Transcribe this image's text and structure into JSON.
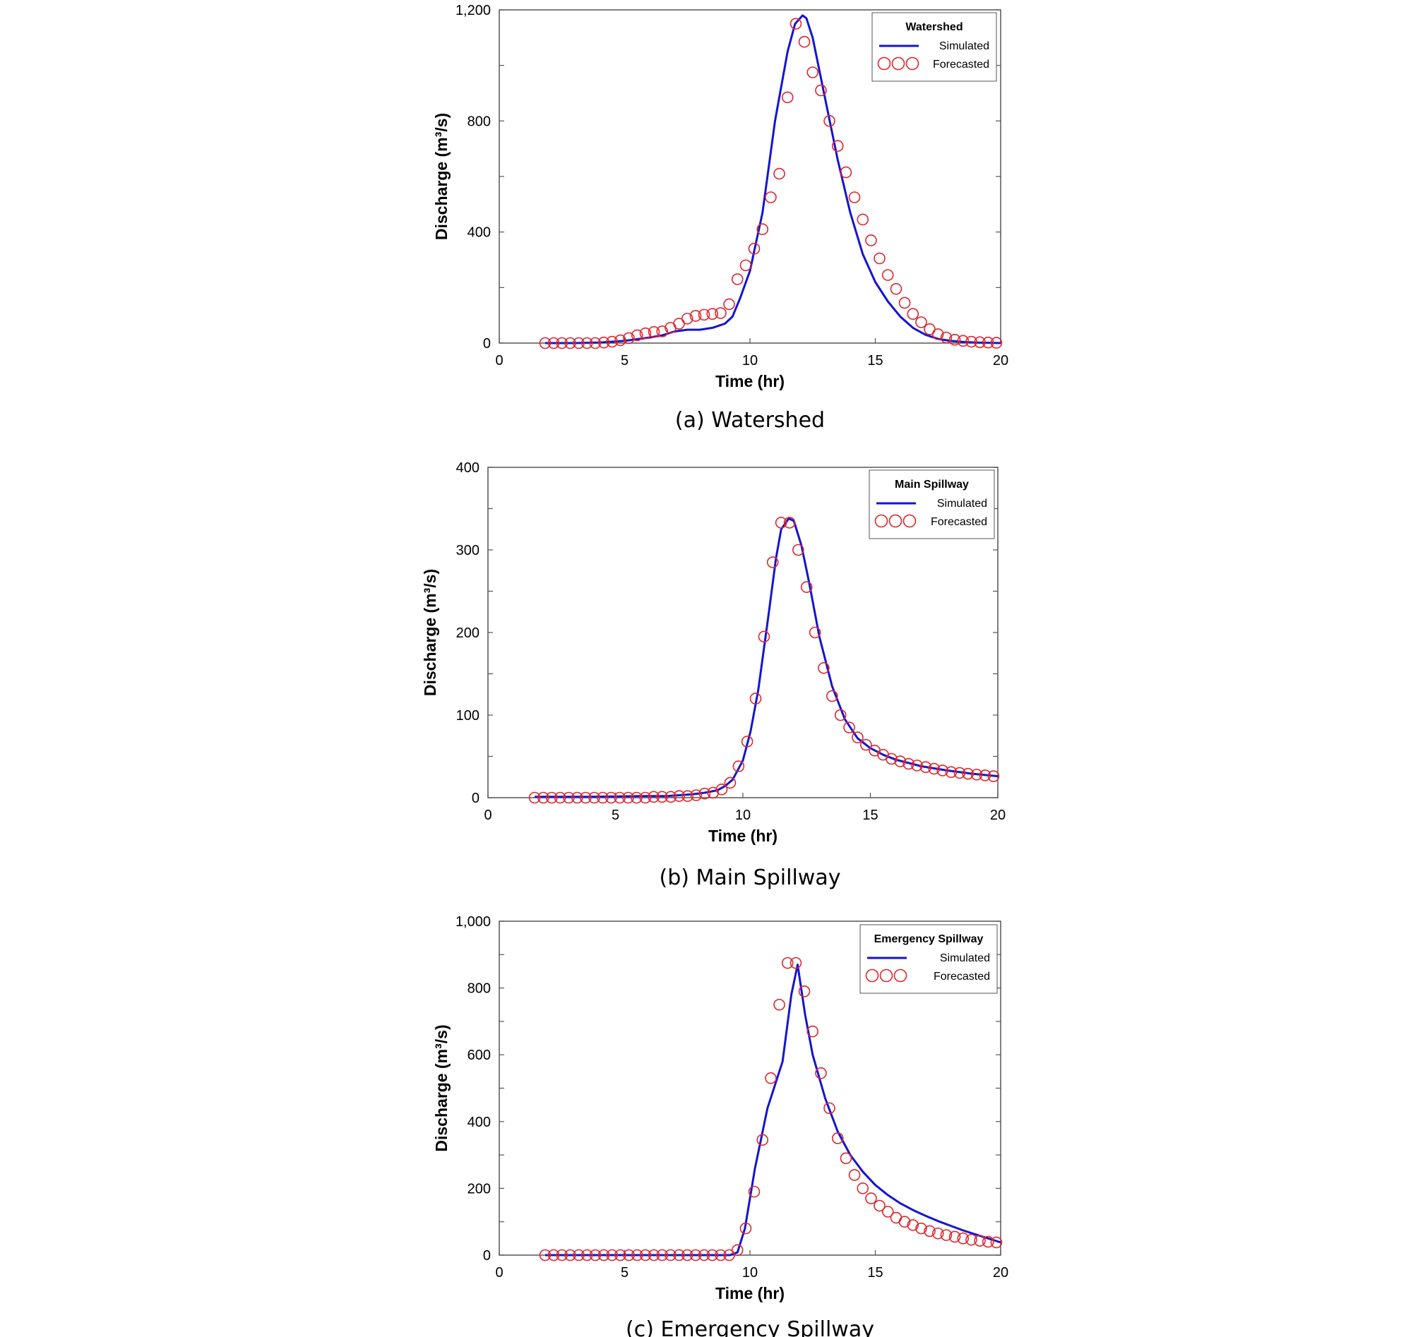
{
  "colors": {
    "simulated": "#1414d2",
    "forecasted": "#e0262b",
    "axis": "#555555"
  },
  "chart_data": [
    {
      "type": "line",
      "caption": "(a) Watershed",
      "legend_title": "Watershed",
      "legend_position": "top-right",
      "xlabel": "Time (hr)",
      "ylabel": "Discharge (m³/s)",
      "xlim": [
        0,
        20
      ],
      "ylim": [
        0,
        1200
      ],
      "xticks": [
        0,
        5,
        10,
        15,
        20
      ],
      "xtick_labels": [
        "0",
        "5",
        "10",
        "15",
        "20"
      ],
      "yticks": [
        0,
        400,
        800,
        1200
      ],
      "ytick_labels": [
        "0",
        "400",
        "800",
        "1,200"
      ],
      "y_minor_step": 200,
      "series": [
        {
          "name": "Simulated",
          "style": "line",
          "x": [
            1.83,
            3,
            4,
            5,
            6,
            6.5,
            7,
            7.5,
            8,
            8.5,
            9,
            9.3,
            9.6,
            10,
            10.5,
            11,
            11.5,
            11.8,
            12.1,
            12.25,
            12.5,
            13,
            13.5,
            14,
            14.5,
            15,
            15.5,
            16,
            16.5,
            17,
            17.5,
            18,
            18.5,
            19,
            20
          ],
          "values": [
            0,
            0,
            2,
            8,
            20,
            28,
            42,
            48,
            48,
            55,
            70,
            95,
            160,
            260,
            470,
            800,
            1050,
            1150,
            1180,
            1170,
            1100,
            880,
            660,
            470,
            320,
            220,
            150,
            95,
            55,
            30,
            15,
            8,
            4,
            2,
            0
          ]
        },
        {
          "name": "Forecasted",
          "style": "markers",
          "x": [
            1.83,
            2.17,
            2.5,
            2.83,
            3.17,
            3.5,
            3.83,
            4.17,
            4.5,
            4.83,
            5.17,
            5.5,
            5.83,
            6.17,
            6.5,
            6.83,
            7.17,
            7.5,
            7.83,
            8.17,
            8.5,
            8.83,
            9.17,
            9.5,
            9.83,
            10.17,
            10.5,
            10.83,
            11.17,
            11.5,
            11.83,
            12.17,
            12.5,
            12.83,
            13.17,
            13.5,
            13.83,
            14.17,
            14.5,
            14.83,
            15.17,
            15.5,
            15.83,
            16.17,
            16.5,
            16.83,
            17.17,
            17.5,
            17.83,
            18.17,
            18.5,
            18.83,
            19.17,
            19.5,
            19.83
          ],
          "values": [
            0,
            0,
            0,
            0,
            0,
            0,
            0,
            2,
            5,
            10,
            18,
            28,
            35,
            40,
            42,
            55,
            70,
            88,
            98,
            102,
            105,
            108,
            140,
            230,
            280,
            340,
            410,
            525,
            610,
            885,
            1150,
            1085,
            975,
            910,
            800,
            710,
            615,
            525,
            445,
            370,
            305,
            245,
            195,
            145,
            105,
            75,
            50,
            32,
            20,
            12,
            8,
            5,
            3,
            2,
            1
          ]
        }
      ]
    },
    {
      "type": "line",
      "caption": "(b) Main Spillway",
      "legend_title": "Main Spillway",
      "legend_position": "top-right",
      "xlabel": "Time (hr)",
      "ylabel": "Discharge (m³/s)",
      "xlim": [
        0,
        20
      ],
      "ylim": [
        0,
        400
      ],
      "xticks": [
        0,
        5,
        10,
        15,
        20
      ],
      "xtick_labels": [
        "0",
        "5",
        "10",
        "15",
        "20"
      ],
      "yticks": [
        0,
        100,
        200,
        300,
        400
      ],
      "ytick_labels": [
        "0",
        "100",
        "200",
        "300",
        "400"
      ],
      "y_minor_step": 50,
      "series": [
        {
          "name": "Simulated",
          "style": "line",
          "x": [
            1.83,
            4,
            6,
            7,
            8,
            8.5,
            9,
            9.3,
            9.6,
            10,
            10.3,
            10.6,
            11,
            11.3,
            11.5,
            11.8,
            12,
            12.3,
            12.6,
            13,
            13.5,
            14,
            14.5,
            15,
            15.5,
            16,
            17,
            18,
            19,
            20
          ],
          "values": [
            1,
            1,
            2,
            2,
            4,
            6,
            9,
            14,
            22,
            45,
            80,
            130,
            220,
            290,
            325,
            338,
            335,
            305,
            260,
            195,
            135,
            95,
            72,
            60,
            52,
            46,
            38,
            33,
            29,
            26
          ]
        },
        {
          "name": "Forecasted",
          "style": "markers",
          "x": [
            1.83,
            2.17,
            2.5,
            2.83,
            3.17,
            3.5,
            3.83,
            4.17,
            4.5,
            4.83,
            5.17,
            5.5,
            5.83,
            6.17,
            6.5,
            6.83,
            7.17,
            7.5,
            7.83,
            8.17,
            8.5,
            8.83,
            9.17,
            9.5,
            9.83,
            10.17,
            10.5,
            10.83,
            11.17,
            11.5,
            11.83,
            12.17,
            12.5,
            12.83,
            13.17,
            13.5,
            13.83,
            14.17,
            14.5,
            14.83,
            15.17,
            15.5,
            15.83,
            16.17,
            16.5,
            16.83,
            17.17,
            17.5,
            17.83,
            18.17,
            18.5,
            18.83,
            19.17,
            19.5,
            19.83
          ],
          "values": [
            0,
            0,
            0,
            0,
            0,
            0,
            0,
            0,
            0,
            0,
            0,
            0,
            0,
            0,
            1,
            1,
            1,
            2,
            2,
            3,
            5,
            6,
            10,
            18,
            38,
            68,
            120,
            195,
            285,
            333,
            333,
            300,
            255,
            200,
            157,
            123,
            100,
            85,
            73,
            64,
            57,
            52,
            47,
            44,
            41,
            39,
            37,
            35,
            33,
            31,
            30,
            29,
            28,
            27,
            26
          ]
        }
      ]
    },
    {
      "type": "line",
      "caption": "(c) Emergency Spillway",
      "legend_title": "Emergency Spillway",
      "legend_position": "top-right",
      "xlabel": "Time (hr)",
      "ylabel": "Discharge (m³/s)",
      "xlim": [
        0,
        20
      ],
      "ylim": [
        0,
        1000
      ],
      "xticks": [
        0,
        5,
        10,
        15,
        20
      ],
      "xtick_labels": [
        "0",
        "5",
        "10",
        "15",
        "20"
      ],
      "yticks": [
        0,
        200,
        400,
        600,
        800,
        1000
      ],
      "ytick_labels": [
        "0",
        "200",
        "400",
        "600",
        "800",
        "1,000"
      ],
      "y_minor_step": 100,
      "series": [
        {
          "name": "Simulated",
          "style": "line",
          "x": [
            1.83,
            9.2,
            9.5,
            9.8,
            10.2,
            10.7,
            11.3,
            11.65,
            11.9,
            12.2,
            12.5,
            13,
            13.5,
            14,
            14.5,
            15,
            15.5,
            16,
            16.5,
            17,
            17.5,
            18,
            18.5,
            19,
            19.5,
            20
          ],
          "values": [
            0,
            0,
            8,
            80,
            260,
            440,
            580,
            780,
            870,
            720,
            600,
            470,
            370,
            300,
            250,
            210,
            180,
            155,
            135,
            118,
            102,
            88,
            74,
            62,
            50,
            38
          ]
        },
        {
          "name": "Forecasted",
          "style": "markers",
          "x": [
            1.83,
            2.17,
            2.5,
            2.83,
            3.17,
            3.5,
            3.83,
            4.17,
            4.5,
            4.83,
            5.17,
            5.5,
            5.83,
            6.17,
            6.5,
            6.83,
            7.17,
            7.5,
            7.83,
            8.17,
            8.5,
            8.83,
            9.17,
            9.5,
            9.83,
            10.17,
            10.5,
            10.83,
            11.17,
            11.5,
            11.83,
            12.17,
            12.5,
            12.83,
            13.17,
            13.5,
            13.83,
            14.17,
            14.5,
            14.83,
            15.17,
            15.5,
            15.83,
            16.17,
            16.5,
            16.83,
            17.17,
            17.5,
            17.83,
            18.17,
            18.5,
            18.83,
            19.17,
            19.5,
            19.83
          ],
          "values": [
            0,
            0,
            0,
            0,
            0,
            0,
            0,
            0,
            0,
            0,
            0,
            0,
            0,
            0,
            0,
            0,
            0,
            0,
            0,
            0,
            0,
            0,
            0,
            15,
            80,
            190,
            345,
            530,
            750,
            875,
            875,
            790,
            670,
            545,
            440,
            350,
            290,
            240,
            200,
            170,
            148,
            130,
            112,
            100,
            90,
            80,
            72,
            65,
            60,
            55,
            50,
            46,
            43,
            40,
            38
          ]
        }
      ]
    }
  ]
}
